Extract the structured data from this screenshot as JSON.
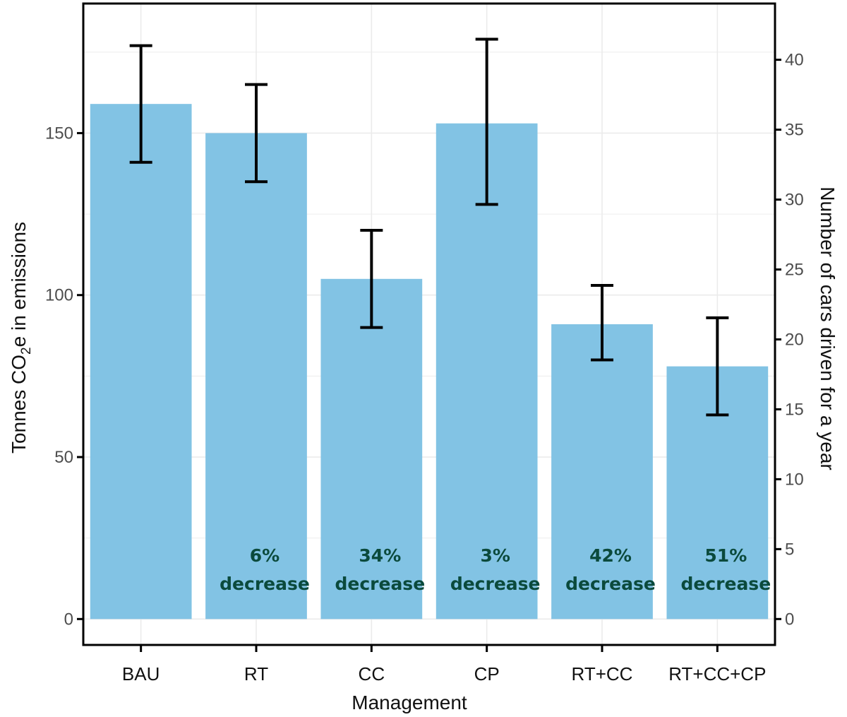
{
  "chart_data": {
    "type": "bar",
    "title": "",
    "xlabel": "Management",
    "ylabel_parts": [
      "Tonnes CO",
      "2",
      "e in emissions"
    ],
    "y2label": "Number of cars driven for a year",
    "categories": [
      "BAU",
      "RT",
      "CC",
      "CP",
      "RT+CC",
      "RT+CC+CP"
    ],
    "series": [
      {
        "values": [
          159,
          150,
          105,
          153,
          91,
          78
        ],
        "error_low": [
          141,
          135,
          90,
          128,
          80,
          63
        ],
        "error_high": [
          177,
          165,
          120,
          179,
          103,
          93
        ]
      }
    ],
    "annotations": [
      [
        "",
        ""
      ],
      [
        "6%",
        "decrease"
      ],
      [
        "34%",
        "decrease"
      ],
      [
        "3%",
        "decrease"
      ],
      [
        "42%",
        "decrease"
      ],
      [
        "51%",
        "decrease"
      ]
    ],
    "ylim": [
      -8,
      190
    ],
    "yticks": [
      0,
      50,
      100,
      150
    ],
    "y2ticks": [
      0,
      5,
      10,
      15,
      20,
      25,
      30,
      35,
      40
    ],
    "y2_per_y": 0.2317,
    "grid": true,
    "colors": {
      "bar": "#82c3e4",
      "errorbar": "#000000",
      "annotation": "#0b4a3c",
      "grid": "#ebebeb"
    }
  }
}
